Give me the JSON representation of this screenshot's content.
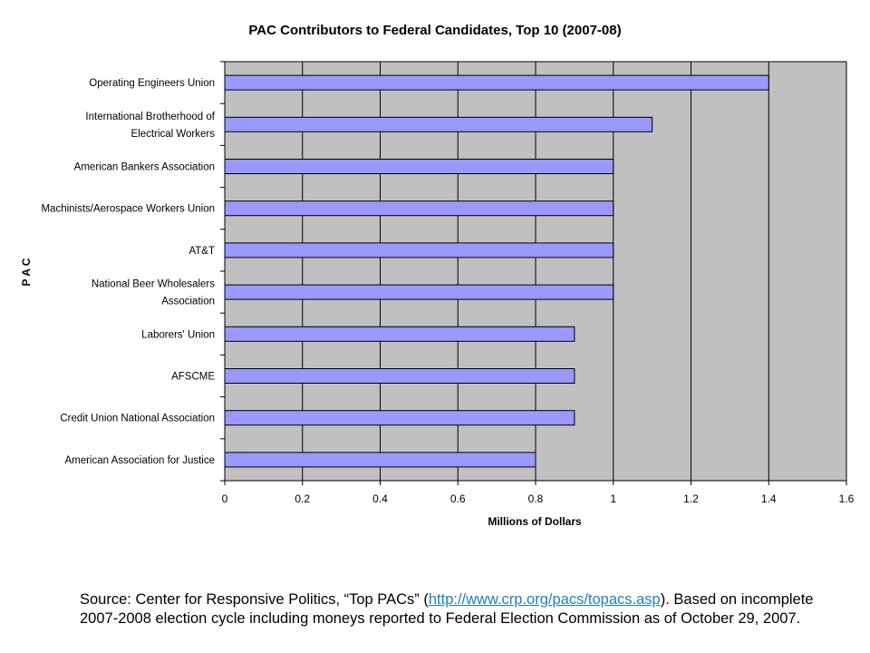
{
  "chart_data": {
    "type": "bar",
    "orientation": "horizontal",
    "title": "PAC Contributors to Federal Candidates, Top 10 (2007-08)",
    "xlabel": "Millions of Dollars",
    "ylabel": "P A C",
    "xlim": [
      0,
      1.6
    ],
    "xticks": [
      "0",
      "0.2",
      "0.4",
      "0.6",
      "0.8",
      "1",
      "1.2",
      "1.4",
      "1.6"
    ],
    "grid": true,
    "legend": "none",
    "categories": [
      "Operating Engineers Union",
      "International Brotherhood of Electrical Workers",
      "American Bankers Association",
      "Machinists/Aerospace Workers Union",
      "AT&T",
      "National Beer Wholesalers Association",
      "Laborers' Union",
      "AFSCME",
      "Credit Union National Association",
      "American Association for Justice"
    ],
    "values": [
      1.4,
      1.1,
      1.0,
      1.0,
      1.0,
      1.0,
      0.9,
      0.9,
      0.9,
      0.8
    ],
    "colors": {
      "bar_fill": "#9999ff",
      "bar_stroke": "#000000",
      "plot_background": "#c0c0c0",
      "gridline": "#000000"
    }
  },
  "source": {
    "prefix": "Source:  Center for Responsive Politics, “Top PACs” (",
    "link_text": "http://www.crp.org/pacs/topacs.asp",
    "suffix": ").  Based on incomplete 2007-2008 election cycle including moneys reported to Federal Election Commission as of October 29, 2007."
  }
}
